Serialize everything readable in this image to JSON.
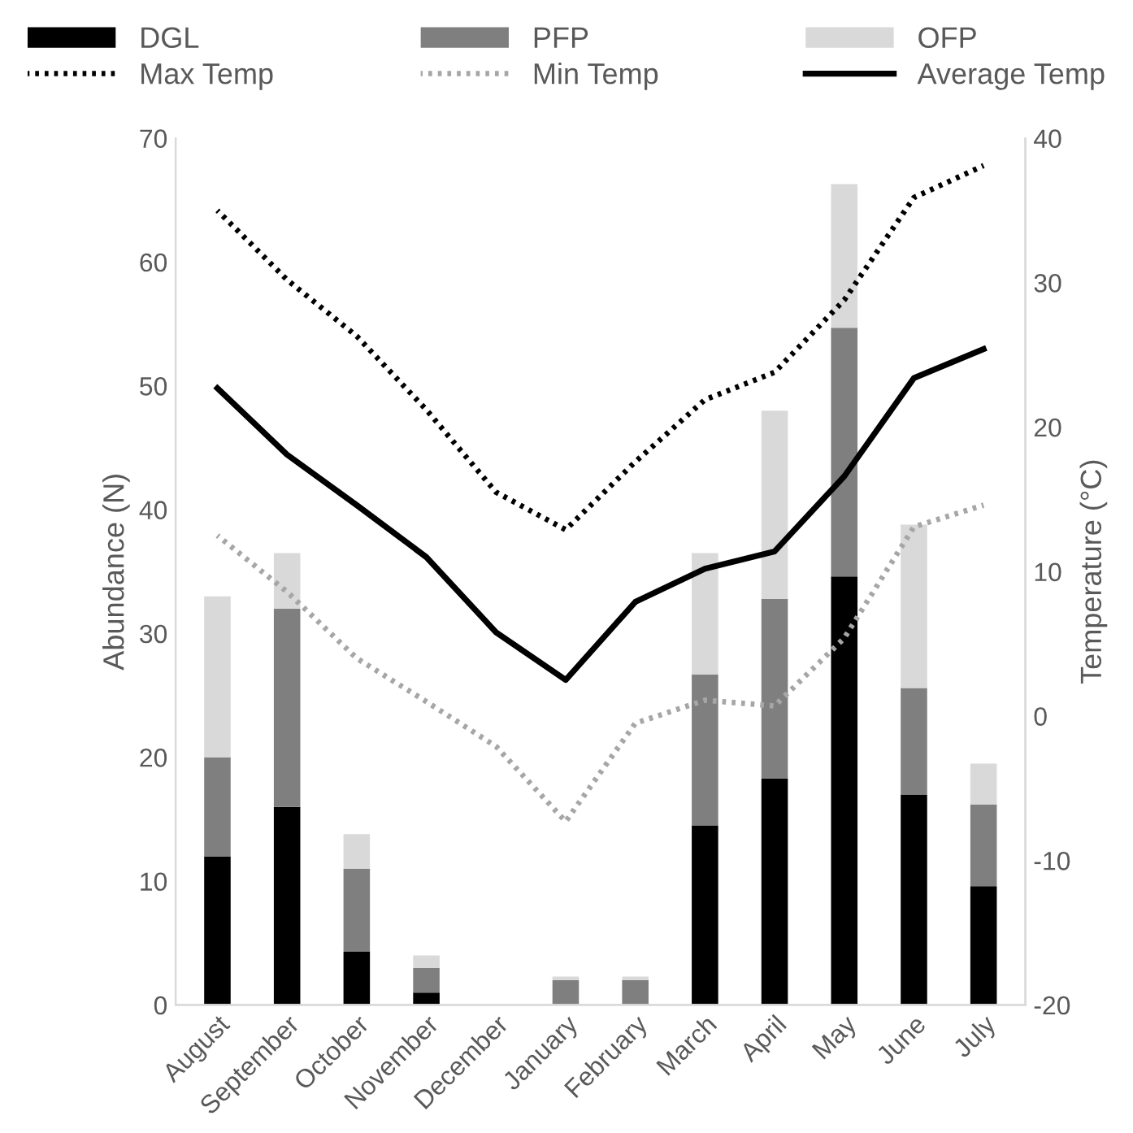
{
  "chart_data": {
    "type": "bar",
    "stacked": true,
    "categories": [
      "August",
      "September",
      "October",
      "November",
      "December",
      "January",
      "February",
      "March",
      "April",
      "May",
      "June",
      "July"
    ],
    "series": [
      {
        "name": "DGL",
        "color": "#000000",
        "values": [
          12,
          16,
          4.3,
          1,
          0,
          0,
          0,
          14.5,
          18.3,
          34.6,
          17,
          9.6
        ]
      },
      {
        "name": "PFP",
        "color": "#7f7f7f",
        "values": [
          8,
          16,
          6.7,
          2,
          0,
          2,
          2,
          12.2,
          14.5,
          20.1,
          8.6,
          6.6
        ]
      },
      {
        "name": "OFP",
        "color": "#d9d9d9",
        "values": [
          13,
          4.5,
          2.8,
          1,
          0,
          0.3,
          0.3,
          9.8,
          15.2,
          11.6,
          13.2,
          3.3
        ]
      },
      {
        "name": "Max Temp",
        "type": "line",
        "axis": "y2",
        "color": "#000000",
        "line_style": "dotted",
        "values": [
          35,
          30.2,
          26.3,
          21.2,
          15.5,
          12.9,
          17.6,
          21.9,
          23.8,
          28.8,
          35.9,
          38.1
        ]
      },
      {
        "name": "Min Temp",
        "type": "line",
        "axis": "y2",
        "color": "#a6a6a6",
        "line_style": "dotted",
        "values": [
          12.5,
          8.6,
          4,
          1,
          -2.1,
          -7.3,
          -0.5,
          1.1,
          0.7,
          5.4,
          13.1,
          14.6
        ]
      },
      {
        "name": "Average Temp",
        "type": "line",
        "axis": "y2",
        "color": "#000000",
        "line_style": "solid",
        "values": [
          22.7,
          18.1,
          14.6,
          11,
          5.8,
          2.5,
          7.9,
          10.2,
          11.4,
          16.6,
          23.4,
          25.4
        ]
      }
    ],
    "ylabel": "Abundance (N)",
    "y2label": "Temperature (°C)",
    "ylim": [
      0,
      70
    ],
    "yticks": [
      0,
      10,
      20,
      30,
      40,
      50,
      60,
      70
    ],
    "y2lim": [
      -20,
      40
    ],
    "y2ticks": [
      -20,
      -10,
      0,
      10,
      20,
      30,
      40
    ],
    "legend": "top",
    "grid": false
  }
}
